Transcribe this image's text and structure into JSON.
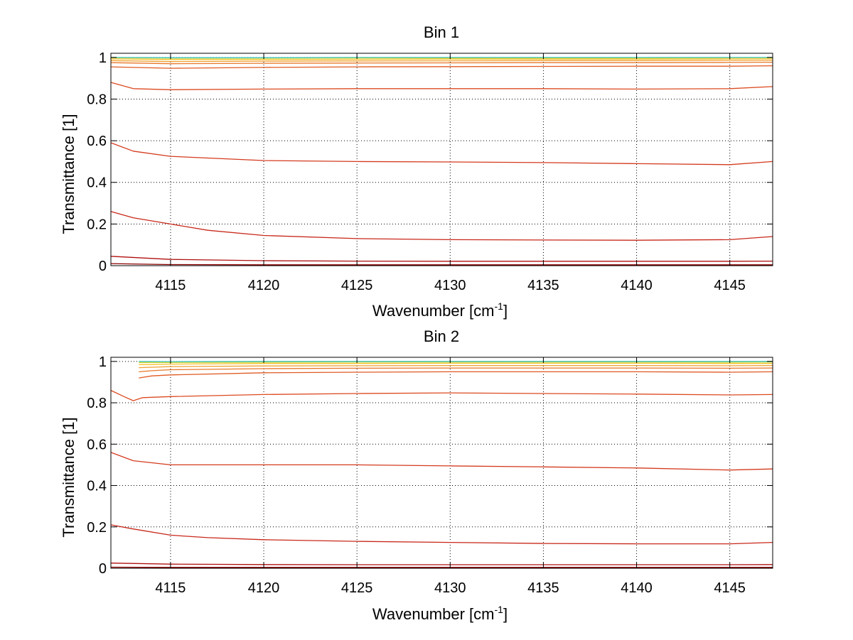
{
  "chart_data": [
    {
      "type": "line",
      "title": "Bin 1",
      "xlabel": "Wavenumber [cm",
      "xlabel_sup": "-1",
      "xlabel_end": "]",
      "ylabel": "Transmittance [1]",
      "xlim": [
        4111.8,
        4147.3
      ],
      "ylim": [
        0,
        1.02
      ],
      "xticks": [
        "4115",
        "4120",
        "4125",
        "4130",
        "4135",
        "4140",
        "4145"
      ],
      "yticks": [
        "0",
        "0.2",
        "0.4",
        "0.6",
        "0.8",
        "1"
      ],
      "grid": true,
      "series": [
        {
          "color": "#8B0000",
          "x": [
            4111.8,
            4115,
            4120,
            4125,
            4130,
            4135,
            4140,
            4145,
            4147.3
          ],
          "values": [
            0.01,
            0.005,
            0.004,
            0.004,
            0.004,
            0.004,
            0.004,
            0.004,
            0.004
          ]
        },
        {
          "color": "#B01010",
          "x": [
            4111.8,
            4115,
            4120,
            4125,
            4130,
            4135,
            4140,
            4145,
            4147.3
          ],
          "values": [
            0.045,
            0.03,
            0.024,
            0.022,
            0.021,
            0.021,
            0.021,
            0.021,
            0.022
          ]
        },
        {
          "color": "#C8281A",
          "x": [
            4111.8,
            4113,
            4115,
            4117,
            4120,
            4125,
            4130,
            4135,
            4140,
            4145,
            4147.3
          ],
          "values": [
            0.26,
            0.23,
            0.2,
            0.17,
            0.145,
            0.13,
            0.125,
            0.123,
            0.122,
            0.125,
            0.14
          ]
        },
        {
          "color": "#D43A1E",
          "x": [
            4111.8,
            4113,
            4115,
            4120,
            4125,
            4130,
            4135,
            4140,
            4145,
            4147.3
          ],
          "values": [
            0.59,
            0.55,
            0.525,
            0.505,
            0.5,
            0.498,
            0.495,
            0.49,
            0.485,
            0.5
          ]
        },
        {
          "color": "#DC4A20",
          "x": [
            4111.8,
            4113,
            4115,
            4120,
            4125,
            4130,
            4135,
            4140,
            4145,
            4147.3
          ],
          "values": [
            0.88,
            0.85,
            0.845,
            0.848,
            0.85,
            0.85,
            0.85,
            0.848,
            0.85,
            0.86
          ]
        },
        {
          "color": "#E05A22",
          "x": [
            4111.8,
            4115,
            4120,
            4125,
            4130,
            4135,
            4140,
            4145,
            4147.3
          ],
          "values": [
            0.955,
            0.948,
            0.952,
            0.955,
            0.956,
            0.957,
            0.958,
            0.958,
            0.96
          ]
        },
        {
          "color": "#E8782A",
          "x": [
            4111.8,
            4115,
            4120,
            4125,
            4130,
            4135,
            4140,
            4145,
            4147.3
          ],
          "values": [
            0.975,
            0.97,
            0.972,
            0.973,
            0.974,
            0.975,
            0.975,
            0.976,
            0.977
          ]
        },
        {
          "color": "#F0A030",
          "x": [
            4111.8,
            4115,
            4120,
            4125,
            4130,
            4135,
            4140,
            4145,
            4147.3
          ],
          "values": [
            0.985,
            0.98,
            0.982,
            0.983,
            0.984,
            0.985,
            0.985,
            0.986,
            0.986
          ]
        },
        {
          "color": "#F5C22E",
          "x": [
            4111.8,
            4115,
            4120,
            4125,
            4130,
            4135,
            4140,
            4145,
            4147.3
          ],
          "values": [
            0.993,
            0.99,
            0.99,
            0.991,
            0.992,
            0.992,
            0.992,
            0.993,
            0.993
          ]
        },
        {
          "color": "#C8D428",
          "x": [
            4111.8,
            4115,
            4120,
            4125,
            4130,
            4135,
            4140,
            4145,
            4147.3
          ],
          "values": [
            0.998,
            0.996,
            0.996,
            0.997,
            0.997,
            0.997,
            0.997,
            0.998,
            0.998
          ]
        },
        {
          "color": "#40C8C8",
          "x": [
            4111.8,
            4115,
            4120,
            4125,
            4130,
            4135,
            4140,
            4145,
            4147.3
          ],
          "values": [
            1.0,
            0.999,
            0.999,
            1.0,
            1.0,
            1.0,
            1.0,
            1.0,
            1.0
          ]
        }
      ]
    },
    {
      "type": "line",
      "title": "Bin 2",
      "xlabel": "Wavenumber [cm",
      "xlabel_sup": "-1",
      "xlabel_end": "]",
      "ylabel": "Transmittance [1]",
      "xlim": [
        4111.8,
        4147.3
      ],
      "ylim": [
        0,
        1.02
      ],
      "xticks": [
        "4115",
        "4120",
        "4125",
        "4130",
        "4135",
        "4140",
        "4145"
      ],
      "yticks": [
        "0",
        "0.2",
        "0.4",
        "0.6",
        "0.8",
        "1"
      ],
      "grid": true,
      "series": [
        {
          "color": "#8B0000",
          "x": [
            4111.8,
            4115,
            4120,
            4125,
            4130,
            4135,
            4140,
            4145,
            4147.3
          ],
          "values": [
            0.005,
            0.004,
            0.004,
            0.004,
            0.004,
            0.004,
            0.004,
            0.004,
            0.004
          ]
        },
        {
          "color": "#B01010",
          "x": [
            4111.8,
            4115,
            4120,
            4125,
            4130,
            4135,
            4140,
            4145,
            4147.3
          ],
          "values": [
            0.025,
            0.02,
            0.018,
            0.017,
            0.017,
            0.017,
            0.017,
            0.017,
            0.018
          ]
        },
        {
          "color": "#C8281A",
          "x": [
            4111.8,
            4113,
            4115,
            4117,
            4120,
            4125,
            4130,
            4135,
            4140,
            4145,
            4147.3
          ],
          "values": [
            0.21,
            0.19,
            0.16,
            0.148,
            0.138,
            0.13,
            0.125,
            0.12,
            0.118,
            0.118,
            0.125
          ]
        },
        {
          "color": "#D43A1E",
          "x": [
            4111.8,
            4113,
            4115,
            4120,
            4125,
            4130,
            4135,
            4140,
            4145,
            4147.3
          ],
          "values": [
            0.56,
            0.52,
            0.5,
            0.5,
            0.5,
            0.495,
            0.49,
            0.485,
            0.475,
            0.48
          ]
        },
        {
          "color": "#DC4A20",
          "x": [
            4111.8,
            4112.5,
            4113,
            4113.5,
            4115,
            4120,
            4125,
            4130,
            4135,
            4140,
            4145,
            4147.3
          ],
          "values": [
            0.86,
            0.83,
            0.81,
            0.825,
            0.83,
            0.84,
            0.845,
            0.848,
            0.845,
            0.842,
            0.838,
            0.84
          ]
        },
        {
          "color": "#E05A22",
          "x": [
            4113.3,
            4114,
            4115,
            4120,
            4125,
            4130,
            4135,
            4140,
            4145,
            4147.3
          ],
          "values": [
            0.92,
            0.93,
            0.935,
            0.945,
            0.948,
            0.95,
            0.95,
            0.95,
            0.948,
            0.95
          ]
        },
        {
          "color": "#E8782A",
          "x": [
            4113.3,
            4114,
            4115,
            4120,
            4125,
            4130,
            4135,
            4140,
            4145,
            4147.3
          ],
          "values": [
            0.95,
            0.955,
            0.96,
            0.965,
            0.967,
            0.968,
            0.968,
            0.968,
            0.967,
            0.968
          ]
        },
        {
          "color": "#F0A030",
          "x": [
            4113.3,
            4114,
            4115,
            4120,
            4125,
            4130,
            4135,
            4140,
            4145,
            4147.3
          ],
          "values": [
            0.97,
            0.972,
            0.975,
            0.978,
            0.979,
            0.98,
            0.98,
            0.98,
            0.979,
            0.98
          ]
        },
        {
          "color": "#F5C22E",
          "x": [
            4113.3,
            4114,
            4115,
            4120,
            4125,
            4130,
            4135,
            4140,
            4145,
            4147.3
          ],
          "values": [
            0.985,
            0.985,
            0.987,
            0.99,
            0.99,
            0.991,
            0.991,
            0.991,
            0.99,
            0.99
          ]
        },
        {
          "color": "#C8D428",
          "x": [
            4113.3,
            4115,
            4120,
            4125,
            4130,
            4135,
            4140,
            4145,
            4147.3
          ],
          "values": [
            0.995,
            0.995,
            0.996,
            0.997,
            0.997,
            0.997,
            0.997,
            0.996,
            0.997
          ]
        },
        {
          "color": "#40C8C8",
          "x": [
            4113.3,
            4115,
            4120,
            4125,
            4130,
            4135,
            4140,
            4145,
            4147.3
          ],
          "values": [
            1.0,
            0.999,
            1.0,
            1.0,
            1.0,
            1.0,
            1.0,
            1.0,
            1.0
          ]
        }
      ]
    }
  ]
}
